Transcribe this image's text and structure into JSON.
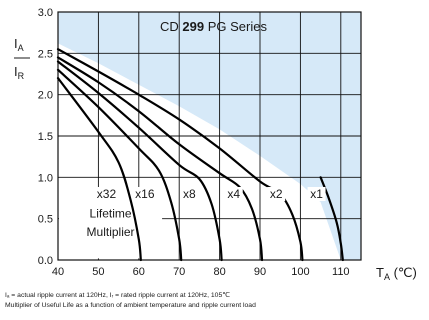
{
  "chart_data": {
    "type": "line",
    "title_prefix": "CD ",
    "title_bold": "299",
    "title_suffix": " PG Series",
    "xlabel_main": "T",
    "xlabel_sub": "A",
    "xlabel_unit": " (℃)",
    "ylabel_num_main": "I",
    "ylabel_num_sub": "A",
    "ylabel_den_main": "I",
    "ylabel_den_sub": "R",
    "xlim": [
      40,
      115
    ],
    "ylim": [
      0.0,
      3.0
    ],
    "x_ticks": [
      "40",
      "50",
      "60",
      "70",
      "80",
      "90",
      "100",
      "110"
    ],
    "y_ticks": [
      "0.0",
      "0.5",
      "1.0",
      "1.5",
      "2.0",
      "2.5",
      "3.0"
    ],
    "grid": true,
    "region_boundary": {
      "x": [
        40,
        50,
        60,
        70,
        80,
        90,
        100,
        105,
        110
      ],
      "y": [
        2.62,
        2.38,
        2.12,
        1.86,
        1.58,
        1.26,
        0.92,
        0.7,
        0.0
      ]
    },
    "series": [
      {
        "name": "x32",
        "x": [
          40,
          50,
          55,
          58,
          60,
          60.5
        ],
        "y": [
          2.2,
          1.55,
          1.18,
          0.72,
          0.25,
          0.0
        ]
      },
      {
        "name": "x16",
        "x": [
          40,
          50,
          60,
          65,
          68,
          70,
          70.5
        ],
        "y": [
          2.3,
          1.85,
          1.35,
          1.08,
          0.7,
          0.25,
          0.0
        ]
      },
      {
        "name": "x8",
        "x": [
          40,
          50,
          60,
          70,
          75,
          78,
          80,
          80.5
        ],
        "y": [
          2.4,
          2.02,
          1.6,
          1.15,
          0.98,
          0.68,
          0.25,
          0.0
        ]
      },
      {
        "name": "x4",
        "x": [
          40,
          50,
          60,
          70,
          80,
          85,
          88,
          90,
          90.5
        ],
        "y": [
          2.45,
          2.15,
          1.8,
          1.4,
          1.05,
          0.88,
          0.62,
          0.25,
          0.0
        ]
      },
      {
        "name": "x2",
        "x": [
          40,
          50,
          60,
          70,
          80,
          90,
          95,
          98,
          100,
          100.5
        ],
        "y": [
          2.55,
          2.28,
          2.0,
          1.7,
          1.35,
          0.95,
          0.8,
          0.55,
          0.22,
          0.0
        ]
      },
      {
        "name": "x1",
        "x": [
          105,
          107,
          109,
          110,
          110.5
        ],
        "y": [
          1.0,
          0.75,
          0.45,
          0.2,
          0.0
        ]
      }
    ],
    "curve_labels": [
      {
        "text": "x32",
        "x": 52,
        "y": 0.75
      },
      {
        "text": "x16",
        "x": 61.5,
        "y": 0.75
      },
      {
        "text": "x8",
        "x": 72.5,
        "y": 0.75
      },
      {
        "text": "x4",
        "x": 83.5,
        "y": 0.75
      },
      {
        "text": "x2",
        "x": 94,
        "y": 0.75
      },
      {
        "text": "x1",
        "x": 104,
        "y": 0.75
      }
    ],
    "inner_label_line1": "Lifetime",
    "inner_label_line2": "Multiplier",
    "colors": {
      "region_fill": "#d6e9f8",
      "grid": "#111111",
      "curve": "#000000"
    }
  },
  "footnote_line1": "Iₐ = actual ripple current at 120Hz, Iᵣ = rated ripple current at 120Hz, 105℃",
  "footnote_line2": "Multiplier of Useful Life as a function of ambient temperature and ripple current load"
}
